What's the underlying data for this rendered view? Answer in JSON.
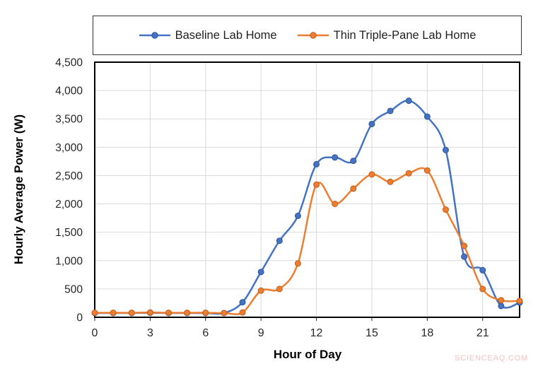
{
  "page": {
    "background": "#ffffff",
    "watermark": "SCIENCEAQ.COM"
  },
  "chart_data": {
    "type": "line",
    "title": "",
    "xlabel": "Hour of Day",
    "ylabel": "Hourly Average Power (W)",
    "x": [
      0,
      1,
      2,
      3,
      4,
      5,
      6,
      7,
      8,
      9,
      10,
      11,
      12,
      13,
      14,
      15,
      16,
      17,
      18,
      19,
      20,
      21,
      22,
      23
    ],
    "series": [
      {
        "name": "Baseline Lab Home",
        "color": "#4472C4",
        "marker_edge": "#2E5693",
        "values": [
          75,
          75,
          75,
          80,
          75,
          75,
          75,
          75,
          265,
          800,
          1350,
          1790,
          2700,
          2820,
          2760,
          3410,
          3640,
          3820,
          3540,
          2950,
          1070,
          830,
          200,
          260
        ]
      },
      {
        "name": "Thin Triple-Pane Lab Home",
        "color": "#ED7D31",
        "marker_edge": "#BE5E1C",
        "values": [
          80,
          80,
          80,
          85,
          80,
          80,
          80,
          75,
          85,
          470,
          500,
          950,
          2340,
          2000,
          2270,
          2520,
          2390,
          2540,
          2590,
          1900,
          1260,
          500,
          300,
          290
        ]
      }
    ],
    "xlim": [
      0,
      23
    ],
    "ylim": [
      0,
      4500
    ],
    "x_ticks": [
      0,
      3,
      6,
      9,
      12,
      15,
      18,
      21
    ],
    "y_ticks": [
      0,
      500,
      1000,
      1500,
      2000,
      2500,
      3000,
      3500,
      4000,
      4500
    ],
    "grid": true,
    "smoothed": true,
    "legend_position": "top",
    "grid_color": "#d9d9d9",
    "border_color": "#000000"
  }
}
